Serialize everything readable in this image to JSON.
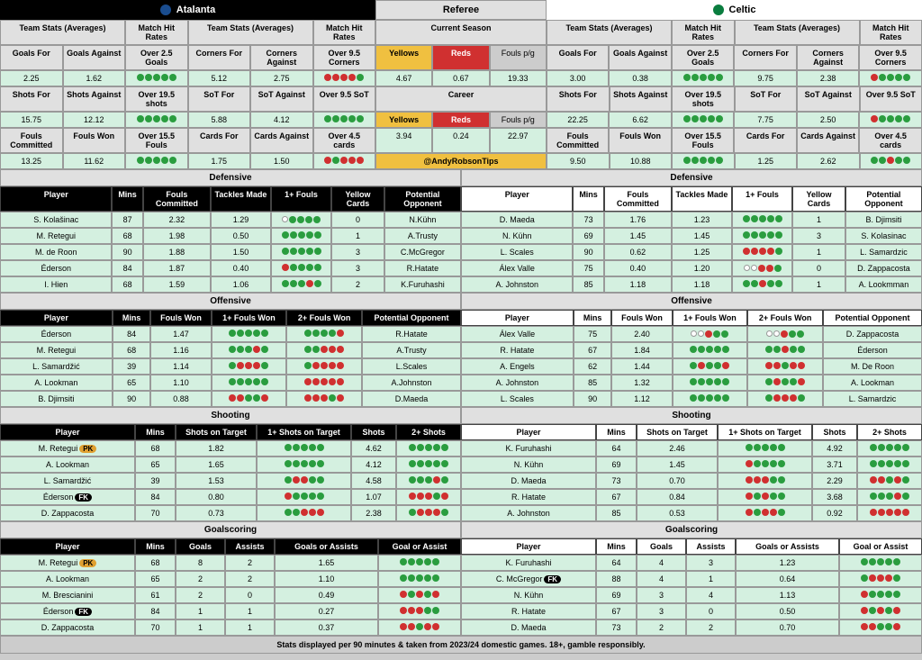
{
  "team1": {
    "name": "Atalanta",
    "logo_color": "#1a4d8f"
  },
  "team2": {
    "name": "Celtic",
    "logo_color": "#0a7d3f"
  },
  "referee_label": "Referee",
  "current_season_label": "Current Season",
  "career_label": "Career",
  "handle": "@AndyRobsonTips",
  "footer": "Stats displayed per 90 minutes & taken from 2023/24 domestic games. 18+, gamble responsibly.",
  "header_labels": {
    "team_stats": "Team Stats (Averages)",
    "match_hit": "Match Hit Rates"
  },
  "stat_labels": {
    "goals_for": "Goals For",
    "goals_against": "Goals Against",
    "over25": "Over 2.5 Goals",
    "corners_for": "Corners For",
    "corners_against": "Corners Against",
    "over95c": "Over 9.5 Corners",
    "shots_for": "Shots For",
    "shots_against": "Shots Against",
    "over195s": "Over 19.5 shots",
    "sot_for": "SoT For",
    "sot_against": "SoT Against",
    "over95s": "Over 9.5 SoT",
    "fouls_comm": "Fouls Committed",
    "fouls_won": "Fouls Won",
    "over155f": "Over 15.5 Fouls",
    "cards_for": "Cards For",
    "cards_against": "Cards Against",
    "over45c": "Over 4.5 cards",
    "yellows": "Yellows",
    "reds": "Reds",
    "fouls_pg": "Fouls p/g"
  },
  "t1stats": {
    "goals_for": "2.25",
    "goals_against": "1.62",
    "over25": "ggggg",
    "corners_for": "5.12",
    "corners_against": "2.75",
    "over95c": "rrrrg",
    "shots_for": "15.75",
    "shots_against": "12.12",
    "over195s": "ggggg",
    "sot_for": "5.88",
    "sot_against": "4.12",
    "over95s": "ggggg",
    "fouls_comm": "13.25",
    "fouls_won": "11.62",
    "over155f": "ggggg",
    "cards_for": "1.75",
    "cards_against": "1.50",
    "over45c": "rgrrr"
  },
  "t2stats": {
    "goals_for": "3.00",
    "goals_against": "0.38",
    "over25": "ggggg",
    "corners_for": "9.75",
    "corners_against": "2.38",
    "over95c": "rgggg",
    "shots_for": "22.25",
    "shots_against": "6.62",
    "over195s": "ggggg",
    "sot_for": "7.75",
    "sot_against": "2.50",
    "over95s": "rgggg",
    "fouls_comm": "9.50",
    "fouls_won": "10.88",
    "over155f": "ggggg",
    "cards_for": "1.25",
    "cards_against": "2.62",
    "over45c": "ggrgg"
  },
  "ref": {
    "cs_yellows": "4.67",
    "cs_reds": "0.67",
    "cs_fpg": "19.33",
    "c_yellows": "3.94",
    "c_reds": "0.24",
    "c_fpg": "22.97"
  },
  "sections": {
    "defensive": "Defensive",
    "offensive": "Offensive",
    "shooting": "Shooting",
    "goalscoring": "Goalscoring"
  },
  "def_headers": [
    "Player",
    "Mins",
    "Fouls Committed",
    "Tackles Made",
    "1+ Fouls",
    "Yellow Cards",
    "Potential Opponent"
  ],
  "off_headers": [
    "Player",
    "Mins",
    "Fouls Won",
    "1+ Fouls Won",
    "2+ Fouls Won",
    "Potential Opponent"
  ],
  "shoot_headers": [
    "Player",
    "Mins",
    "Shots on Target",
    "1+ Shots on Target",
    "Shots",
    "2+ Shots"
  ],
  "goal_headers": [
    "Player",
    "Mins",
    "Goals",
    "Assists",
    "Goals or Assists",
    "Goal or Assist"
  ],
  "t1_def": [
    {
      "p": "S. Kolašinac",
      "m": "87",
      "fc": "2.32",
      "tm": "1.29",
      "f1": "ogggg",
      "yc": "0",
      "op": "N.Kühn"
    },
    {
      "p": "M. Retegui",
      "m": "68",
      "fc": "1.98",
      "tm": "0.50",
      "f1": "ggggg",
      "yc": "1",
      "op": "A.Trusty"
    },
    {
      "p": "M. de Roon",
      "m": "90",
      "fc": "1.88",
      "tm": "1.50",
      "f1": "ggggg",
      "yc": "3",
      "op": "C.McGregor"
    },
    {
      "p": "Éderson",
      "m": "84",
      "fc": "1.87",
      "tm": "0.40",
      "f1": "rgggg",
      "yc": "3",
      "op": "R.Hatate"
    },
    {
      "p": "I. Hien",
      "m": "68",
      "fc": "1.59",
      "tm": "1.06",
      "f1": "gggrg",
      "yc": "2",
      "op": "K.Furuhashi"
    }
  ],
  "t2_def": [
    {
      "p": "D. Maeda",
      "m": "73",
      "fc": "1.76",
      "tm": "1.23",
      "f1": "ggggg",
      "yc": "1",
      "op": "B. Djimsiti"
    },
    {
      "p": "N. Kühn",
      "m": "69",
      "fc": "1.45",
      "tm": "1.45",
      "f1": "ggggg",
      "yc": "3",
      "op": "S. Kolasinac"
    },
    {
      "p": "L. Scales",
      "m": "90",
      "fc": "0.62",
      "tm": "1.25",
      "f1": "rrrrg",
      "yc": "1",
      "op": "L. Samardzic"
    },
    {
      "p": "Álex Valle",
      "m": "75",
      "fc": "0.40",
      "tm": "1.20",
      "f1": "oorrg",
      "yc": "0",
      "op": "D. Zappacosta"
    },
    {
      "p": "A. Johnston",
      "m": "85",
      "fc": "1.18",
      "tm": "1.18",
      "f1": "ggrgg",
      "yc": "1",
      "op": "A. Lookmman"
    }
  ],
  "t1_off": [
    {
      "p": "Éderson",
      "m": "84",
      "fw": "1.47",
      "f1": "ggggg",
      "f2": "ggggr",
      "op": "R.Hatate"
    },
    {
      "p": "M. Retegui",
      "m": "68",
      "fw": "1.16",
      "f1": "gggrg",
      "f2": "ggrrr",
      "op": "A.Trusty"
    },
    {
      "p": "L. Samardžić",
      "m": "39",
      "fw": "1.14",
      "f1": "grrrg",
      "f2": "grrrr",
      "op": "L.Scales"
    },
    {
      "p": "A. Lookman",
      "m": "65",
      "fw": "1.10",
      "f1": "ggggg",
      "f2": "rrrrr",
      "op": "A.Johnston"
    },
    {
      "p": "B. Djimsiti",
      "m": "90",
      "fw": "0.88",
      "f1": "rrggr",
      "f2": "rrrgr",
      "op": "D.Maeda"
    }
  ],
  "t2_off": [
    {
      "p": "Álex Valle",
      "m": "75",
      "fw": "2.40",
      "f1": "oorgg",
      "f2": "oorgg",
      "op": "D. Zappacosta"
    },
    {
      "p": "R. Hatate",
      "m": "67",
      "fw": "1.84",
      "f1": "ggggg",
      "f2": "ggrgg",
      "op": "Éderson"
    },
    {
      "p": "A. Engels",
      "m": "62",
      "fw": "1.44",
      "f1": "grggr",
      "f2": "rrgrr",
      "op": "M. De Roon"
    },
    {
      "p": "A. Johnston",
      "m": "85",
      "fw": "1.32",
      "f1": "ggggg",
      "f2": "grggr",
      "op": "A. Lookman"
    },
    {
      "p": "L. Scales",
      "m": "90",
      "fw": "1.12",
      "f1": "ggggg",
      "f2": "grrrg",
      "op": "L. Samardzic"
    }
  ],
  "t1_shoot": [
    {
      "p": "M. Retegui",
      "badge": "PK",
      "m": "68",
      "sot": "1.82",
      "s1": "ggggg",
      "sh": "4.62",
      "s2": "ggggg"
    },
    {
      "p": "A. Lookman",
      "m": "65",
      "sot": "1.65",
      "s1": "ggggg",
      "sh": "4.12",
      "s2": "ggggg"
    },
    {
      "p": "L. Samardžić",
      "m": "39",
      "sot": "1.53",
      "s1": "grrgg",
      "sh": "4.58",
      "s2": "gggrg"
    },
    {
      "p": "Éderson",
      "badge": "FK",
      "m": "84",
      "sot": "0.80",
      "s1": "rgggg",
      "sh": "1.07",
      "s2": "rrrgr"
    },
    {
      "p": "D. Zappacosta",
      "m": "70",
      "sot": "0.73",
      "s1": "ggrrr",
      "sh": "2.38",
      "s2": "grrrg"
    }
  ],
  "t2_shoot": [
    {
      "p": "K. Furuhashi",
      "m": "64",
      "sot": "2.46",
      "s1": "ggggg",
      "sh": "4.92",
      "s2": "ggggg"
    },
    {
      "p": "N. Kühn",
      "m": "69",
      "sot": "1.45",
      "s1": "rgggg",
      "sh": "3.71",
      "s2": "ggggg"
    },
    {
      "p": "D. Maeda",
      "m": "73",
      "sot": "0.70",
      "s1": "rrrgg",
      "sh": "2.29",
      "s2": "rrgrg"
    },
    {
      "p": "R. Hatate",
      "m": "67",
      "sot": "0.84",
      "s1": "rgrgg",
      "sh": "3.68",
      "s2": "gggrg"
    },
    {
      "p": "A. Johnston",
      "m": "85",
      "sot": "0.53",
      "s1": "rgrrg",
      "sh": "0.92",
      "s2": "rrrrr"
    }
  ],
  "t1_goal": [
    {
      "p": "M. Retegui",
      "badge": "PK",
      "m": "68",
      "g": "8",
      "a": "2",
      "ga": "1.65",
      "gad": "ggggg"
    },
    {
      "p": "A. Lookman",
      "m": "65",
      "g": "2",
      "a": "2",
      "ga": "1.10",
      "gad": "ggggg"
    },
    {
      "p": "M. Brescianini",
      "m": "61",
      "g": "2",
      "a": "0",
      "ga": "0.49",
      "gad": "rgrgr"
    },
    {
      "p": "Éderson",
      "badge": "FK",
      "m": "84",
      "g": "1",
      "a": "1",
      "ga": "0.27",
      "gad": "rrrgg"
    },
    {
      "p": "D. Zappacosta",
      "m": "70",
      "g": "1",
      "a": "1",
      "ga": "0.37",
      "gad": "rrgrr"
    }
  ],
  "t2_goal": [
    {
      "p": "K. Furuhashi",
      "m": "64",
      "g": "4",
      "a": "3",
      "ga": "1.23",
      "gad": "ggggg"
    },
    {
      "p": "C. McGregor",
      "badge": "FK",
      "m": "88",
      "g": "4",
      "a": "1",
      "ga": "0.64",
      "gad": "grrrg"
    },
    {
      "p": "N. Kühn",
      "m": "69",
      "g": "3",
      "a": "4",
      "ga": "1.13",
      "gad": "rgggg"
    },
    {
      "p": "R. Hatate",
      "m": "67",
      "g": "3",
      "a": "0",
      "ga": "0.50",
      "gad": "rgrgr"
    },
    {
      "p": "D. Maeda",
      "m": "73",
      "g": "2",
      "a": "2",
      "ga": "0.70",
      "gad": "rrggr"
    }
  ]
}
